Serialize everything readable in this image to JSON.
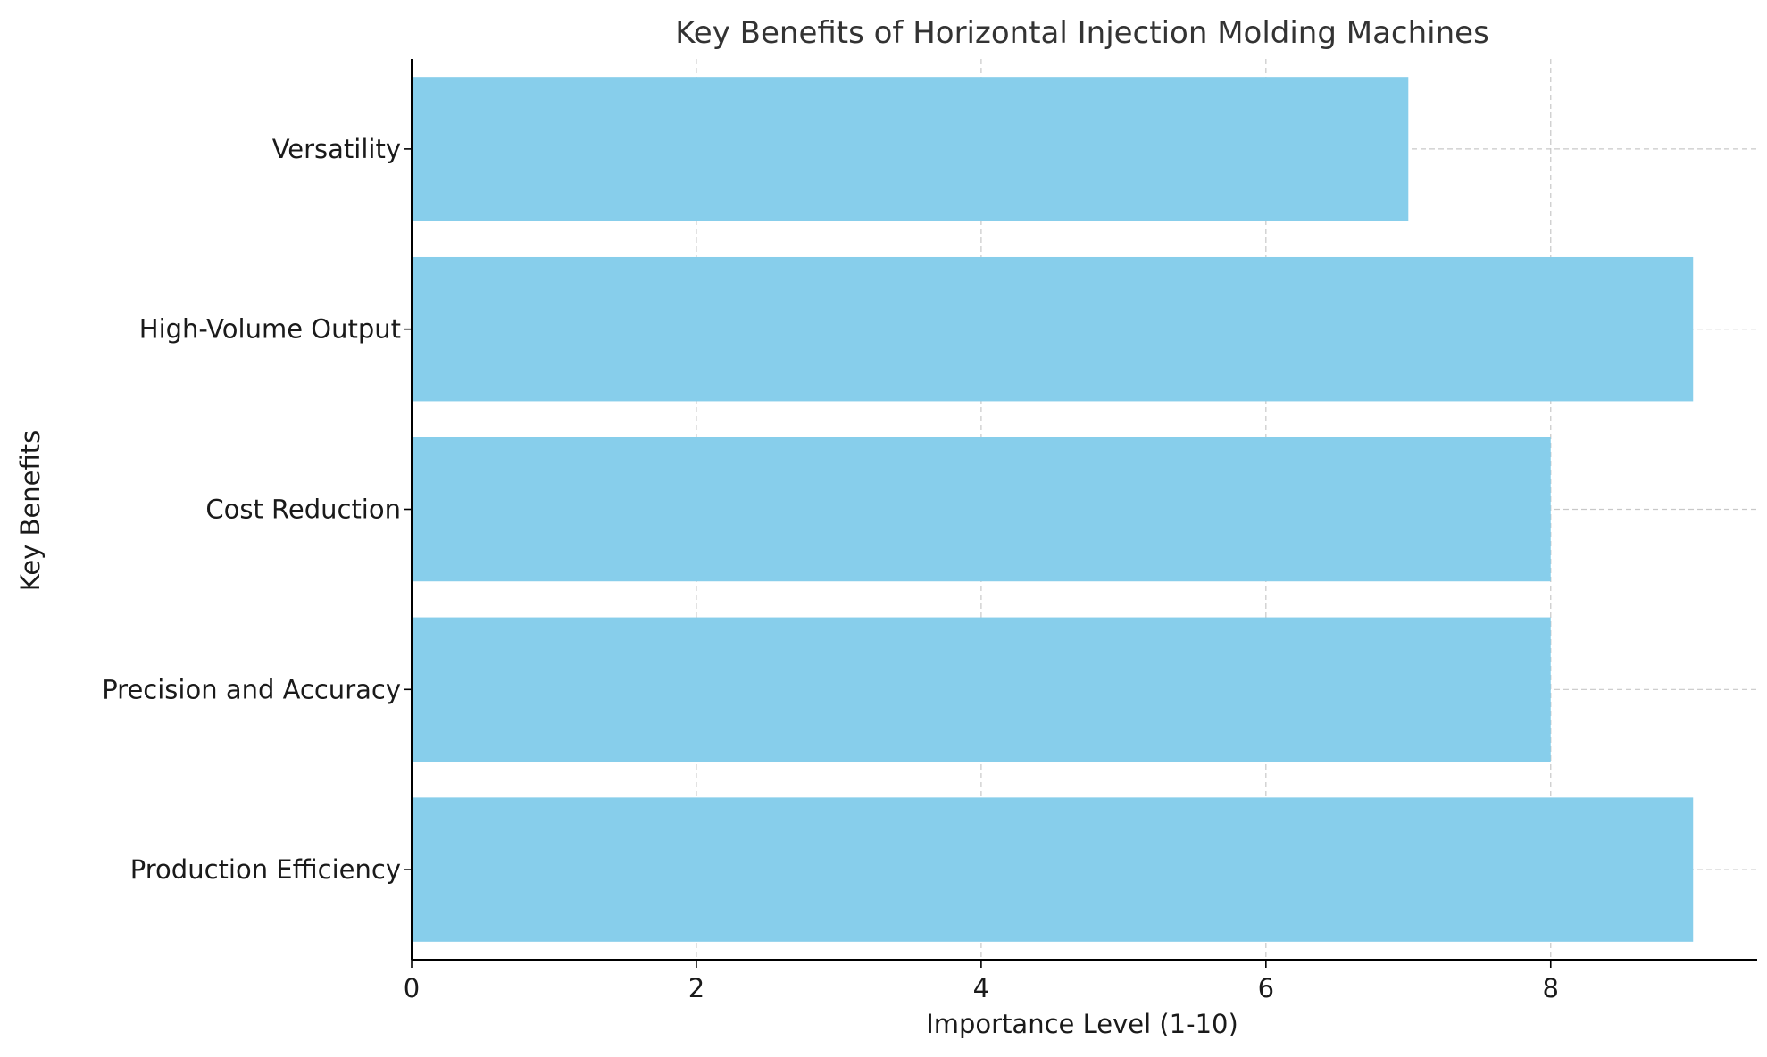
{
  "chart_data": {
    "type": "bar",
    "orientation": "horizontal",
    "title": "Key Benefits of Horizontal Injection Molding Machines",
    "xlabel": "Importance Level (1-10)",
    "ylabel": "Key Benefits",
    "categories": [
      "Production Efficiency",
      "Precision and Accuracy",
      "Cost Reduction",
      "High-Volume Output",
      "Versatility"
    ],
    "values": [
      9,
      8,
      8,
      9,
      7
    ],
    "xlim": [
      0,
      9.45
    ],
    "xticks": [
      0,
      2,
      4,
      6,
      8
    ],
    "grid": true,
    "bar_color": "#87CEEB"
  }
}
